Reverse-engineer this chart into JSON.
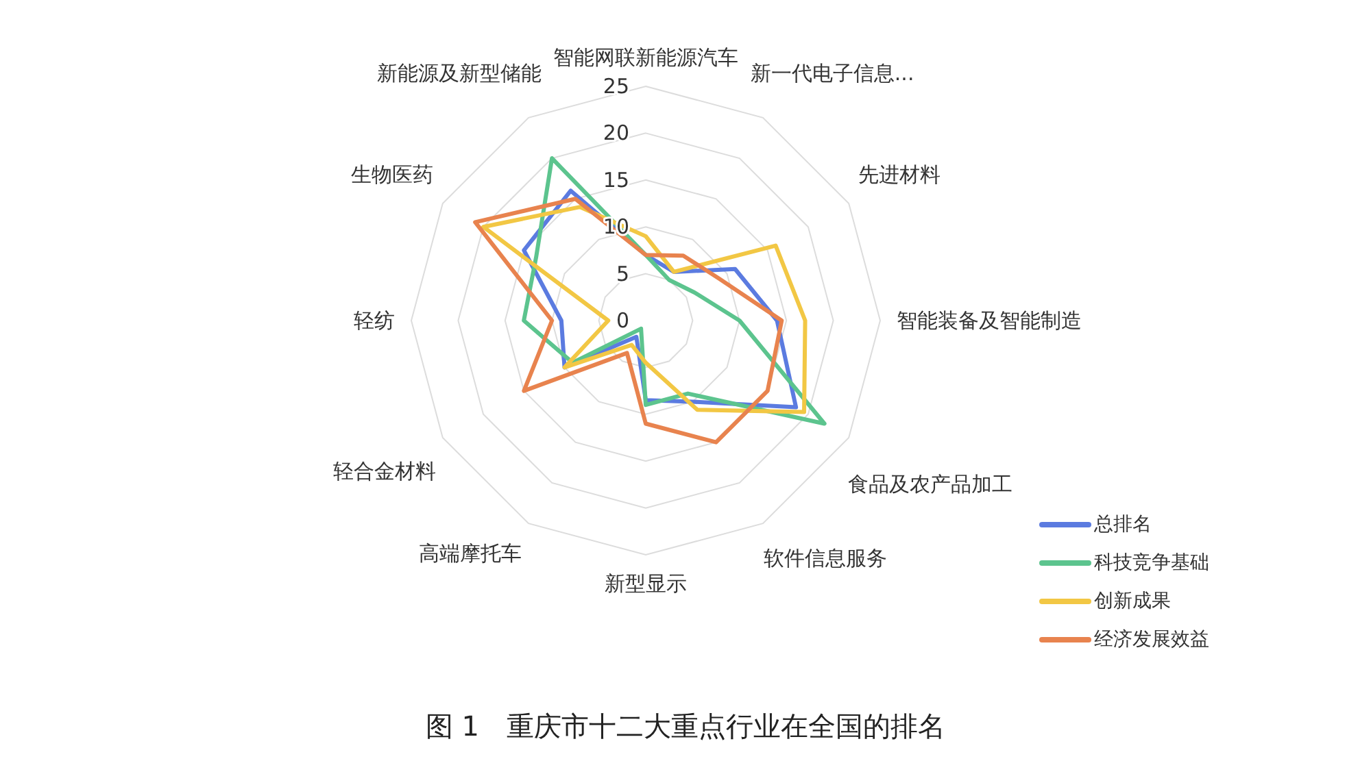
{
  "chart_data": {
    "type": "radar",
    "title": "图 1　重庆市十二大重点行业在全国的排名",
    "categories": [
      "智能网联新能源汽车",
      "新一代电子信息...",
      "先进材料",
      "智能装备及智能制造",
      "食品及农产品加工",
      "软件信息服务",
      "新型显示",
      "高端摩托车",
      "轻合金材料",
      "轻纺",
      "生物医药",
      "新能源及新型储能"
    ],
    "ylim": [
      0,
      25
    ],
    "yticks": [
      0,
      5,
      10,
      15,
      20,
      25
    ],
    "grid": true,
    "legend": "bottom right",
    "series": [
      {
        "name": "总排名",
        "color": "#5b7be0",
        "values": [
          7,
          6,
          11,
          14,
          18.5,
          10,
          8.5,
          2,
          10,
          9,
          15,
          16
        ]
      },
      {
        "name": "科技竞争基础",
        "color": "#5cc48e",
        "values": [
          7,
          5,
          6,
          10,
          22,
          9,
          9,
          1,
          9,
          13,
          13.5,
          20
        ]
      },
      {
        "name": "创新成果",
        "color": "#f2c744",
        "values": [
          9,
          6,
          16,
          17,
          19.5,
          11,
          4.5,
          3,
          10,
          4,
          20,
          14
        ]
      },
      {
        "name": "经济发展效益",
        "color": "#e8834e",
        "values": [
          7,
          8,
          9,
          14.5,
          15,
          15,
          11,
          4,
          15,
          10,
          21,
          15
        ]
      }
    ]
  }
}
